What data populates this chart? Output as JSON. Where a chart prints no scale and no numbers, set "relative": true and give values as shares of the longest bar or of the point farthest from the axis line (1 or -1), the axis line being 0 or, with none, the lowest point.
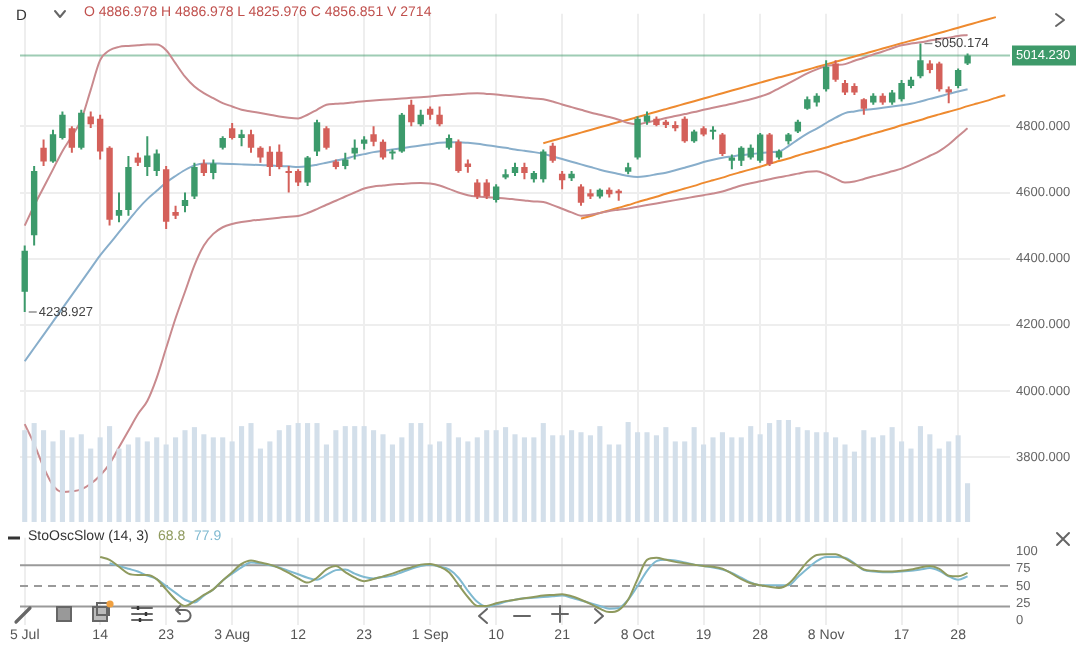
{
  "chart_data": [
    {
      "type": "candlestick",
      "title": "D",
      "subtitle": "O 4886.978  H 4886.978  L 4825.976  C 4856.851  V 2714",
      "categories": [
        "5 Jul",
        null,
        null,
        null,
        null,
        null,
        null,
        null,
        "14",
        null,
        null,
        null,
        null,
        null,
        null,
        "23",
        null,
        null,
        null,
        null,
        null,
        null,
        "3 Aug",
        null,
        null,
        null,
        null,
        null,
        null,
        "12",
        null,
        null,
        null,
        null,
        null,
        null,
        "23",
        null,
        null,
        null,
        null,
        null,
        null,
        "1 Sep",
        null,
        null,
        null,
        null,
        null,
        null,
        "10",
        null,
        null,
        null,
        null,
        null,
        null,
        "21",
        null,
        null,
        null,
        null,
        null,
        null,
        null,
        "8 Oct",
        null,
        null,
        null,
        null,
        null,
        null,
        "19",
        null,
        null,
        null,
        null,
        null,
        "28",
        null,
        null,
        null,
        null,
        null,
        null,
        "8 Nov",
        null,
        null,
        null,
        null,
        null,
        null,
        null,
        "17",
        null,
        null,
        null,
        null,
        null,
        "28",
        null,
        null,
        null,
        null,
        null
      ],
      "ohlc": [
        [
          4300,
          4440,
          4238.927,
          4424
        ],
        [
          4471,
          4680,
          4440,
          4665
        ],
        [
          4735,
          4760,
          4680,
          4694
        ],
        [
          4694,
          4790,
          4690,
          4776
        ],
        [
          4765,
          4845,
          4760,
          4835
        ],
        [
          4794,
          4800,
          4720,
          4735
        ],
        [
          4735,
          4850,
          4730,
          4841
        ],
        [
          4830,
          4845,
          4795,
          4806
        ],
        [
          4823,
          4835,
          4700,
          4724
        ],
        [
          4735,
          4740,
          4500,
          4518
        ],
        [
          4530,
          4600,
          4510,
          4547
        ],
        [
          4547,
          4710,
          4530,
          4677
        ],
        [
          4706,
          4720,
          4680,
          4690
        ],
        [
          4677,
          4770,
          4650,
          4712
        ],
        [
          4665,
          4730,
          4650,
          4718
        ],
        [
          4670,
          4680,
          4490,
          4512
        ],
        [
          4541,
          4560,
          4520,
          4530
        ],
        [
          4559,
          4600,
          4540,
          4577
        ],
        [
          4588,
          4690,
          4580,
          4677
        ],
        [
          4688,
          4700,
          4650,
          4659
        ],
        [
          4659,
          4700,
          4640,
          4688
        ],
        [
          4735,
          4770,
          4730,
          4765
        ],
        [
          4794,
          4810,
          4760,
          4765
        ],
        [
          4765,
          4790,
          4740,
          4776
        ],
        [
          4776,
          4790,
          4720,
          4735
        ],
        [
          4735,
          4740,
          4690,
          4706
        ],
        [
          4723,
          4740,
          4650,
          4677
        ],
        [
          4723,
          4745,
          4670,
          4677
        ],
        [
          4665,
          4680,
          4600,
          4659
        ],
        [
          4665,
          4670,
          4620,
          4630
        ],
        [
          4630,
          4710,
          4620,
          4706
        ],
        [
          4724,
          4820,
          4710,
          4812
        ],
        [
          4794,
          4800,
          4730,
          4735
        ],
        [
          4694,
          4700,
          4670,
          4677
        ],
        [
          4680,
          4720,
          4670,
          4700
        ],
        [
          4718,
          4760,
          4700,
          4735
        ],
        [
          4747,
          4770,
          4730,
          4760
        ],
        [
          4776,
          4800,
          4740,
          4753
        ],
        [
          4753,
          4760,
          4700,
          4706
        ],
        [
          4718,
          4730,
          4700,
          4724
        ],
        [
          4724,
          4840,
          4720,
          4835
        ],
        [
          4865,
          4880,
          4800,
          4812
        ],
        [
          4806,
          4850,
          4800,
          4835
        ],
        [
          4853,
          4860,
          4820,
          4835
        ],
        [
          4835,
          4860,
          4800,
          4806
        ],
        [
          4735,
          4775,
          4730,
          4765
        ],
        [
          4753,
          4760,
          4660,
          4665
        ],
        [
          4688,
          4700,
          4660,
          4677
        ],
        [
          4630,
          4640,
          4580,
          4588
        ],
        [
          4630,
          4640,
          4580,
          4588
        ],
        [
          4577,
          4625,
          4570,
          4618
        ],
        [
          4645,
          4670,
          4640,
          4655
        ],
        [
          4659,
          4690,
          4650,
          4677
        ],
        [
          4677,
          4690,
          4640,
          4659
        ],
        [
          4640,
          4665,
          4630,
          4659
        ],
        [
          4640,
          4730,
          4630,
          4724
        ],
        [
          4741,
          4750,
          4690,
          4696
        ],
        [
          4657,
          4665,
          4610,
          4637
        ],
        [
          4643,
          4665,
          4635,
          4657
        ],
        [
          4618,
          4625,
          4560,
          4569
        ],
        [
          4598,
          4610,
          4580,
          4588
        ],
        [
          4588,
          4612,
          4582,
          4608
        ],
        [
          4608,
          4615,
          4585,
          4595
        ],
        [
          4605,
          4610,
          4575,
          4598
        ],
        [
          4663,
          4690,
          4655,
          4676
        ],
        [
          4706,
          4830,
          4700,
          4823
        ],
        [
          4814,
          4845,
          4805,
          4833
        ],
        [
          4823,
          4830,
          4800,
          4804
        ],
        [
          4814,
          4820,
          4795,
          4804
        ],
        [
          4804,
          4815,
          4785,
          4794
        ],
        [
          4823,
          4830,
          4750,
          4755
        ],
        [
          4755,
          4790,
          4750,
          4784
        ],
        [
          4794,
          4800,
          4770,
          4775
        ],
        [
          4784,
          4800,
          4760,
          4790
        ],
        [
          4775,
          4780,
          4710,
          4716
        ],
        [
          4696,
          4715,
          4670,
          4706
        ],
        [
          4696,
          4740,
          4680,
          4735
        ],
        [
          4706,
          4745,
          4700,
          4735
        ],
        [
          4696,
          4780,
          4690,
          4775
        ],
        [
          4775,
          4780,
          4680,
          4686
        ],
        [
          4706,
          4730,
          4700,
          4725
        ],
        [
          4755,
          4780,
          4745,
          4775
        ],
        [
          4784,
          4820,
          4780,
          4814
        ],
        [
          4853,
          4890,
          4850,
          4882
        ],
        [
          4872,
          4900,
          4860,
          4892
        ],
        [
          4912,
          5000,
          4905,
          4980
        ],
        [
          4990,
          5000,
          4935,
          4941
        ],
        [
          4931,
          4940,
          4895,
          4902
        ],
        [
          4922,
          4930,
          4895,
          4902
        ],
        [
          4882,
          4885,
          4835,
          4853
        ],
        [
          4872,
          4900,
          4865,
          4892
        ],
        [
          4892,
          4900,
          4865,
          4872
        ],
        [
          4872,
          4910,
          4865,
          4902
        ],
        [
          4882,
          4940,
          4875,
          4931
        ],
        [
          4922,
          4950,
          4915,
          4941
        ],
        [
          4951,
          5050.174,
          4945,
          5000
        ],
        [
          4990,
          5000,
          4960,
          4970
        ],
        [
          4990,
          4995,
          4905,
          4912
        ],
        [
          4912,
          4920,
          4870,
          4902
        ],
        [
          4922,
          4975,
          4915,
          4970
        ],
        [
          4990,
          5020,
          4985,
          5014.23
        ],
        null,
        null,
        null,
        null
      ],
      "colors": [
        "#3c9a6b",
        "#3c9a6b",
        "#d4605a",
        "#3c9a6b",
        "#3c9a6b",
        "#d4605a",
        "#3c9a6b",
        "#d4605a",
        "#d4605a",
        "#d4605a",
        "#3c9a6b",
        "#3c9a6b",
        "#d4605a",
        "#3c9a6b",
        "#3c9a6b",
        "#d4605a",
        "#d4605a",
        "#3c9a6b",
        "#3c9a6b",
        "#d4605a",
        "#3c9a6b",
        "#3c9a6b",
        "#d4605a",
        "#3c9a6b",
        "#d4605a",
        "#d4605a",
        "#d4605a",
        "#d4605a",
        "#d4605a",
        "#d4605a",
        "#3c9a6b",
        "#3c9a6b",
        "#d4605a",
        "#d4605a",
        "#3c9a6b",
        "#3c9a6b",
        "#3c9a6b",
        "#d4605a",
        "#d4605a",
        "#3c9a6b",
        "#3c9a6b",
        "#d4605a",
        "#3c9a6b",
        "#d4605a",
        "#d4605a",
        "#3c9a6b",
        "#d4605a",
        "#d4605a",
        "#d4605a",
        "#d4605a",
        "#3c9a6b",
        "#3c9a6b",
        "#3c9a6b",
        "#d4605a",
        "#3c9a6b",
        "#3c9a6b",
        "#d4605a",
        "#d4605a",
        "#3c9a6b",
        "#d4605a",
        "#d4605a",
        "#3c9a6b",
        "#d4605a",
        "#d4605a",
        "#3c9a6b",
        "#3c9a6b",
        "#3c9a6b",
        "#d4605a",
        "#d4605a",
        "#d4605a",
        "#d4605a",
        "#3c9a6b",
        "#d4605a",
        "#3c9a6b",
        "#d4605a",
        "#3c9a6b",
        "#3c9a6b",
        "#3c9a6b",
        "#3c9a6b",
        "#d4605a",
        "#3c9a6b",
        "#3c9a6b",
        "#3c9a6b",
        "#3c9a6b",
        "#3c9a6b",
        "#3c9a6b",
        "#d4605a",
        "#d4605a",
        "#d4605a",
        "#d4605a",
        "#3c9a6b",
        "#d4605a",
        "#3c9a6b",
        "#3c9a6b",
        "#3c9a6b",
        "#3c9a6b",
        "#d4605a",
        "#d4605a",
        "#d4605a",
        "#3c9a6b",
        "#3c9a6b",
        null,
        null,
        null,
        null
      ],
      "series": [
        {
          "type": "line",
          "color": "#c98a8e",
          "values": [
            4500,
            4560,
            4615,
            4670,
            4725,
            4770,
            4820,
            4910,
            5000,
            5030,
            5040,
            5043,
            5045,
            5047,
            5047,
            5030,
            4990,
            4950,
            4920,
            4900,
            4885,
            4870,
            4860,
            4850,
            4845,
            4840,
            4835,
            4830,
            4826,
            4824,
            4835,
            4850,
            4865,
            4868,
            4870,
            4873,
            4876,
            4878,
            4880,
            4882,
            4884,
            4886,
            4888,
            4890,
            4893,
            4895,
            4897,
            4899,
            4900,
            4898,
            4896,
            4893,
            4890,
            4887,
            4884,
            4882,
            4875,
            4866,
            4858,
            4850,
            4842,
            4835,
            4828,
            4820,
            4810,
            4806,
            4812,
            4818,
            4825,
            4831,
            4837,
            4843,
            4850,
            4856,
            4862,
            4868,
            4875,
            4882,
            4890,
            4900,
            4915,
            4930,
            4945,
            4960,
            4972,
            4982,
            4985,
            4988,
            4998,
            5007,
            5017,
            5026,
            5036,
            5045,
            5050,
            5054,
            5059,
            5064,
            5068,
            5073,
            5076,
            null,
            null,
            null,
            null
          ]
        },
        {
          "type": "line",
          "color": "#88aecb",
          "values": [
            4090,
            4130,
            4170,
            4210,
            4250,
            4290,
            4330,
            4370,
            4410,
            4445,
            4480,
            4515,
            4550,
            4580,
            4605,
            4630,
            4650,
            4668,
            4682,
            4688,
            4688,
            4687,
            4686,
            4685,
            4684,
            4683,
            4682,
            4680,
            4679,
            4677,
            4679,
            4684,
            4690,
            4696,
            4702,
            4710,
            4716,
            4722,
            4726,
            4730,
            4734,
            4738,
            4742,
            4746,
            4750,
            4752,
            4752,
            4750,
            4747,
            4743,
            4739,
            4735,
            4730,
            4726,
            4722,
            4717,
            4709,
            4701,
            4693,
            4685,
            4677,
            4669,
            4662,
            4656,
            4650,
            4647,
            4650,
            4655,
            4660,
            4667,
            4675,
            4683,
            4692,
            4699,
            4705,
            4709,
            4713,
            4716,
            4719,
            4722,
            4724,
            4740,
            4760,
            4778,
            4793,
            4810,
            4826,
            4840,
            4845,
            4849,
            4852,
            4856,
            4860,
            4864,
            4868,
            4875,
            4883,
            4890,
            4898,
            4905,
            4912,
            null,
            null,
            null,
            null
          ]
        },
        {
          "type": "line",
          "color": "#c98a8e",
          "values": [
            3900,
            3840,
            3770,
            3715,
            3695,
            3697,
            3703,
            3720,
            3745,
            3780,
            3830,
            3880,
            3930,
            3970,
            4040,
            4130,
            4220,
            4300,
            4380,
            4440,
            4475,
            4495,
            4505,
            4511,
            4515,
            4518,
            4521,
            4524,
            4527,
            4529,
            4538,
            4550,
            4563,
            4575,
            4588,
            4600,
            4612,
            4618,
            4621,
            4624,
            4626,
            4628,
            4629,
            4627,
            4621,
            4611,
            4600,
            4592,
            4588,
            4586,
            4584,
            4582,
            4579,
            4576,
            4573,
            4571,
            4562,
            4551,
            4540,
            4530,
            4533,
            4538,
            4544,
            4548,
            4552,
            4557,
            4562,
            4567,
            4572,
            4577,
            4582,
            4587,
            4592,
            4597,
            4603,
            4612,
            4621,
            4628,
            4634,
            4640,
            4646,
            4651,
            4657,
            4663,
            4664,
            4655,
            4642,
            4630,
            4633,
            4641,
            4649,
            4656,
            4664,
            4672,
            4684,
            4697,
            4711,
            4725,
            4745,
            4770,
            4794,
            null,
            null,
            null,
            null
          ]
        },
        {
          "type": "line",
          "color": "#ee8a2f",
          "values": [
            null,
            null,
            null,
            null,
            null,
            null,
            null,
            null,
            null,
            null,
            null,
            null,
            null,
            null,
            null,
            null,
            null,
            null,
            null,
            null,
            null,
            null,
            null,
            null,
            null,
            null,
            null,
            null,
            null,
            null,
            null,
            null,
            null,
            null,
            null,
            null,
            null,
            null,
            null,
            null,
            null,
            null,
            null,
            null,
            null,
            null,
            null,
            null,
            null,
            null,
            null,
            null,
            null,
            null,
            null,
            4749,
            4757,
            4765,
            4773,
            4781,
            4789,
            4797,
            4805,
            4813,
            4820,
            4828,
            4836,
            4844,
            4852,
            4860,
            4868,
            4876,
            4884,
            4892,
            4900,
            4908,
            4916,
            4924,
            4932,
            4940,
            4948,
            4955,
            4963,
            4971,
            4979,
            4987,
            4995,
            5003,
            5011,
            5019,
            5027,
            5035,
            5043,
            5051,
            5059,
            5066,
            5074,
            5082,
            5090,
            5098,
            5106,
            5114,
            5122,
            5130,
            null
          ]
        },
        {
          "type": "line",
          "color": "#ee8a2f",
          "values": [
            null,
            null,
            null,
            null,
            null,
            null,
            null,
            null,
            null,
            null,
            null,
            null,
            null,
            null,
            null,
            null,
            null,
            null,
            null,
            null,
            null,
            null,
            null,
            null,
            null,
            null,
            null,
            null,
            null,
            null,
            null,
            null,
            null,
            null,
            null,
            null,
            null,
            null,
            null,
            null,
            null,
            null,
            null,
            null,
            null,
            null,
            null,
            null,
            null,
            null,
            null,
            null,
            null,
            null,
            null,
            null,
            null,
            null,
            null,
            4521,
            4529,
            4538,
            4546,
            4554,
            4562,
            4571,
            4579,
            4587,
            4596,
            4604,
            4612,
            4620,
            4629,
            4637,
            4645,
            4654,
            4662,
            4670,
            4678,
            4687,
            4695,
            4703,
            4712,
            4720,
            4728,
            4736,
            4745,
            4753,
            4761,
            4770,
            4778,
            4786,
            4794,
            4803,
            4811,
            4819,
            4828,
            4836,
            4844,
            4852,
            4861,
            4869,
            4877,
            4886,
            4894
          ]
        }
      ],
      "ylim": [
        3640,
        5140
      ],
      "yticks": [
        {
          "value": 3800,
          "label": "3800.000"
        },
        {
          "value": 4000,
          "label": "4000.000"
        },
        {
          "value": 4200,
          "label": "4200.000"
        },
        {
          "value": 4400,
          "label": "4400.000"
        },
        {
          "value": 4600,
          "label": "4600.000"
        },
        {
          "value": 4800,
          "label": "4800.000"
        }
      ],
      "ref_lines": [
        {
          "axis": "y",
          "value": 5014.23,
          "label": "5014.230",
          "color": "#3e9a6a"
        }
      ],
      "annotations": [
        {
          "text": "4238.927",
          "x": "5 Jul",
          "y": 4238.927
        },
        {
          "text": "5050.174",
          "y": 5050.174
        }
      ],
      "grid": true,
      "tick_labels": "y"
    },
    {
      "type": "bar",
      "relative": true,
      "tick_labels": false,
      "color": "#d3dfea",
      "categories": [
        null,
        null,
        null,
        null,
        null,
        null,
        null,
        null,
        null,
        null,
        null,
        null,
        null,
        null,
        null,
        null,
        null,
        null,
        null,
        null,
        null,
        null,
        null,
        null,
        null,
        null,
        null,
        null,
        null,
        null,
        null,
        null,
        null,
        null,
        null,
        null,
        null,
        null,
        null,
        null,
        null,
        null,
        null,
        null,
        null,
        null,
        null,
        null,
        null,
        null,
        null,
        null,
        null,
        null,
        null,
        null,
        null,
        null,
        null,
        null,
        null,
        null,
        null,
        null,
        null,
        null,
        null,
        null,
        null,
        null,
        null,
        null,
        null,
        null,
        null,
        null,
        null,
        null,
        null,
        null,
        null,
        null,
        null,
        null,
        null,
        null,
        null,
        null,
        null,
        null,
        null,
        null,
        null,
        null,
        null,
        null,
        null,
        null,
        null,
        null,
        null,
        null,
        null,
        null,
        null
      ],
      "values": [
        0.9,
        0.97,
        0.9,
        0.79,
        0.9,
        0.83,
        0.86,
        0.72,
        0.83,
        0.94,
        0.72,
        0.76,
        0.83,
        0.79,
        0.83,
        0.76,
        0.83,
        0.9,
        0.93,
        0.86,
        0.83,
        0.83,
        0.79,
        0.94,
        0.97,
        0.72,
        0.79,
        0.9,
        0.95,
        0.97,
        0.97,
        0.97,
        0.76,
        0.9,
        0.94,
        0.94,
        0.94,
        0.9,
        0.86,
        0.76,
        0.83,
        0.97,
        0.97,
        0.76,
        0.79,
        0.97,
        0.83,
        0.79,
        0.83,
        0.9,
        0.9,
        0.93,
        0.86,
        0.83,
        0.83,
        0.97,
        0.85,
        0.85,
        0.9,
        0.88,
        0.85,
        0.94,
        0.76,
        0.76,
        0.98,
        0.88,
        0.88,
        0.85,
        0.93,
        0.79,
        0.79,
        0.93,
        0.76,
        0.83,
        0.88,
        0.83,
        0.83,
        0.94,
        0.86,
        0.97,
        1,
        1,
        0.93,
        0.9,
        0.88,
        0.88,
        0.83,
        0.76,
        0.69,
        0.9,
        0.83,
        0.85,
        0.93,
        0.79,
        0.72,
        0.94,
        0.86,
        0.72,
        0.79,
        0.85,
        0.38,
        null,
        null,
        null,
        null
      ]
    },
    {
      "type": "line",
      "title": "StoOscSlow (14, 3)",
      "categories": [
        "5 Jul",
        null,
        null,
        null,
        null,
        null,
        null,
        null,
        "14",
        null,
        null,
        null,
        null,
        null,
        null,
        "23",
        null,
        null,
        null,
        null,
        null,
        null,
        "3 Aug",
        null,
        null,
        null,
        null,
        null,
        null,
        "12",
        null,
        null,
        null,
        null,
        null,
        null,
        "23",
        null,
        null,
        null,
        null,
        null,
        null,
        "1 Sep",
        null,
        null,
        null,
        null,
        null,
        null,
        "10",
        null,
        null,
        null,
        null,
        null,
        null,
        "21",
        null,
        null,
        null,
        null,
        null,
        null,
        null,
        "8 Oct",
        null,
        null,
        null,
        null,
        null,
        null,
        "19",
        null,
        null,
        null,
        null,
        null,
        "28",
        null,
        null,
        null,
        null,
        null,
        null,
        "8 Nov",
        null,
        null,
        null,
        null,
        null,
        null,
        null,
        "17",
        null,
        null,
        null,
        null,
        null,
        "28",
        null,
        null,
        null,
        null,
        null
      ],
      "series": [
        {
          "name": "68.8",
          "color": "#8f9a5e",
          "values": [
            null,
            null,
            null,
            null,
            null,
            null,
            null,
            null,
            92,
            88,
            78,
            68,
            66,
            66,
            60,
            45,
            30,
            21,
            28,
            37,
            45,
            58,
            70,
            82,
            87,
            84,
            81,
            76,
            69,
            61,
            55,
            62,
            74,
            79,
            70,
            62,
            57,
            60,
            64,
            68,
            73,
            77,
            81,
            82,
            78,
            70,
            52,
            34,
            21,
            21,
            25,
            28,
            30,
            32,
            34,
            36,
            37,
            38,
            35,
            30,
            24,
            17,
            12,
            15,
            30,
            60,
            88,
            91,
            88,
            85,
            83,
            81,
            79,
            78,
            75,
            68,
            60,
            54,
            51,
            49,
            47,
            53,
            68,
            85,
            95,
            96,
            96,
            90,
            82,
            74,
            72,
            71,
            71,
            72,
            74,
            77,
            79,
            75,
            65,
            64,
            69,
            null,
            null,
            null,
            null
          ]
        },
        {
          "name": "77.9",
          "color": "#7fb9d0",
          "values": [
            null,
            null,
            null,
            null,
            null,
            null,
            null,
            null,
            null,
            83,
            79,
            75,
            71,
            65,
            60,
            50,
            40,
            30,
            26,
            36,
            45,
            58,
            68,
            77,
            84,
            83,
            80,
            77,
            72,
            67,
            62,
            59,
            66,
            73,
            74,
            68,
            63,
            61,
            63,
            65,
            70,
            75,
            79,
            81,
            78,
            74,
            62,
            43,
            27,
            20,
            23,
            27,
            30,
            32,
            33,
            34,
            35,
            36,
            33,
            29,
            25,
            21,
            17,
            18,
            30,
            50,
            72,
            86,
            88,
            87,
            84,
            81,
            79,
            77,
            74,
            69,
            62,
            55,
            51,
            51,
            51,
            51,
            63,
            75,
            86,
            92,
            92,
            91,
            83,
            73,
            71,
            70,
            70,
            71,
            72,
            74,
            76,
            72,
            64,
            59,
            64,
            null,
            null,
            null,
            null
          ]
        }
      ],
      "ylim": [
        -7,
        120
      ],
      "yticks": [
        0,
        25,
        50,
        75,
        100
      ],
      "ref_lines": [
        {
          "axis": "y",
          "value": 80,
          "color": "#9a9a9a"
        },
        {
          "axis": "y",
          "value": 50,
          "color": "#9a9a9a",
          "line_style": "dashed"
        },
        {
          "axis": "y",
          "value": 20,
          "color": "#9a9a9a"
        }
      ],
      "grid": "x"
    }
  ]
}
